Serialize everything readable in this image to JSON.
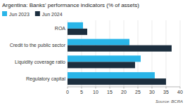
{
  "chart_data": {
    "type": "bar",
    "orientation": "horizontal",
    "title": "Argentina: Banks' performance indicators (% of assets)",
    "annotations": [
      "Source: BCRA"
    ],
    "categories": [
      "Regulatory capital",
      "Liquidity coverage ratio",
      "Credit to the public sector",
      "ROA"
    ],
    "series": [
      {
        "name": "Jun 2023",
        "color": "#29b5e8",
        "values": [
          31,
          26,
          22,
          5.5
        ]
      },
      {
        "name": "Jun 2024",
        "color": "#1c2e3e",
        "values": [
          35,
          24,
          37,
          7
        ]
      }
    ],
    "xlim": [
      0,
      40
    ],
    "xticks": [
      0,
      5,
      10,
      15,
      20,
      25,
      30,
      35,
      40
    ],
    "grid": true,
    "legend": "top-left"
  }
}
